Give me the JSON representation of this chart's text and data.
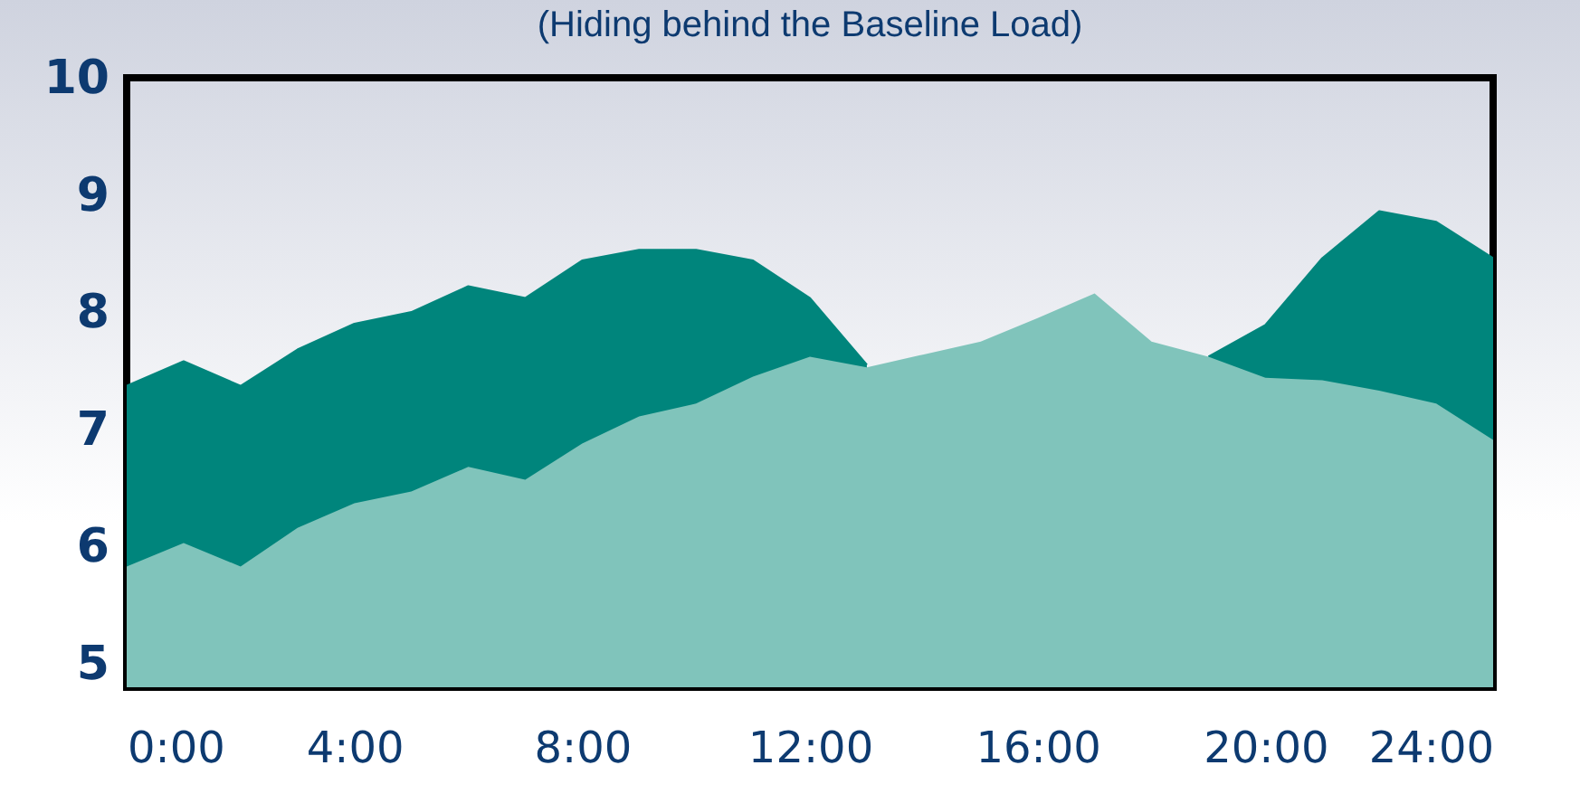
{
  "chart_data": {
    "type": "area",
    "title": "(Hiding behind the Baseline Load)",
    "x": [
      0,
      1,
      2,
      3,
      4,
      5,
      6,
      7,
      8,
      9,
      10,
      11,
      12,
      13,
      14,
      15,
      16,
      17,
      18,
      19,
      20,
      21,
      22,
      23,
      24
    ],
    "series": [
      {
        "type": "area",
        "color": "#00857c",
        "values": [
          7.37,
          7.58,
          7.37,
          7.68,
          7.9,
          8.0,
          8.22,
          8.12,
          8.44,
          8.53,
          8.53,
          8.44,
          8.12,
          7.55,
          null,
          null,
          null,
          null,
          null,
          7.62,
          7.89,
          8.46,
          8.86,
          8.77,
          8.46
        ]
      },
      {
        "type": "area",
        "color": "#80c4bb",
        "values": [
          5.83,
          6.03,
          5.83,
          6.16,
          6.37,
          6.47,
          6.68,
          6.57,
          6.88,
          7.11,
          7.22,
          7.45,
          7.62,
          7.53,
          7.64,
          7.75,
          7.95,
          8.16,
          7.75,
          7.62,
          7.44,
          7.42,
          7.33,
          7.22,
          6.91
        ]
      }
    ],
    "xlim": [
      0,
      24
    ],
    "xticks": [
      {
        "value": 0,
        "label": "0:00"
      },
      {
        "value": 4,
        "label": "4:00"
      },
      {
        "value": 8,
        "label": "8:00"
      },
      {
        "value": 12,
        "label": "12:00"
      },
      {
        "value": 16,
        "label": "16:00"
      },
      {
        "value": 20,
        "label": "20:00"
      },
      {
        "value": 24,
        "label": "24:00"
      }
    ],
    "ylim": [
      4.8,
      10
    ],
    "yticks": [
      5,
      6,
      7,
      8,
      9,
      10
    ],
    "grid": false,
    "legend": false
  }
}
